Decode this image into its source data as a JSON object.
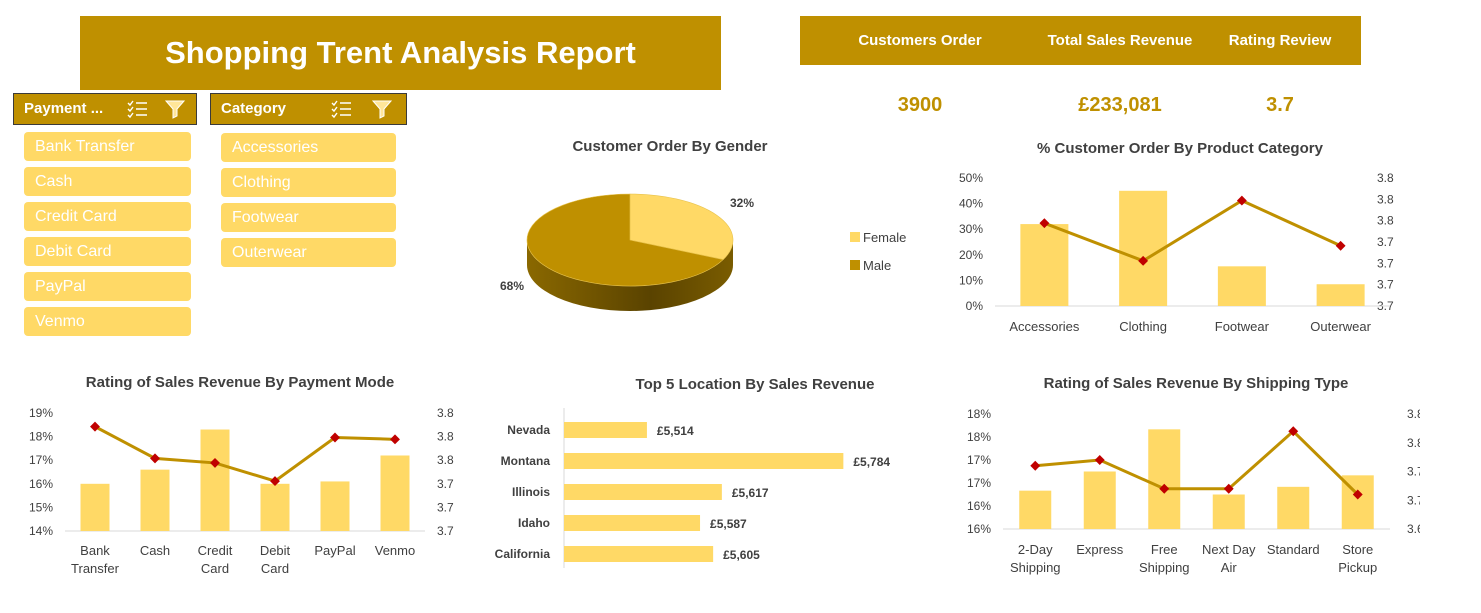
{
  "title": "Shopping Trent  Analysis Report",
  "kpis": {
    "customers_order": {
      "label": "Customers Order",
      "value": "3900"
    },
    "total_sales_revenue": {
      "label": "Total Sales Revenue",
      "value": "£233,081"
    },
    "rating_review": {
      "label": "Rating Review",
      "value": "3.7"
    }
  },
  "colors": {
    "gold": "#BF9000",
    "light_gold": "#FFD966",
    "marker": "#C00000"
  },
  "slicers": {
    "payment": {
      "title": "Payment ...",
      "items": [
        "Bank Transfer",
        "Cash",
        "Credit Card",
        "Debit Card",
        "PayPal",
        "Venmo"
      ]
    },
    "category": {
      "title": "Category",
      "items": [
        "Accessories",
        "Clothing",
        "Footwear",
        "Outerwear"
      ]
    }
  },
  "chart_data": [
    {
      "id": "gender",
      "type": "pie",
      "title": "Customer Order By Gender",
      "categories": [
        "Female",
        "Male"
      ],
      "values": [
        32,
        68
      ],
      "data_labels": [
        "32%",
        "68%"
      ],
      "legend": "right"
    },
    {
      "id": "category",
      "type": "bar",
      "title": "% Customer Order By Product Category",
      "categories": [
        "Accessories",
        "Clothing",
        "Footwear",
        "Outerwear"
      ],
      "series": [
        {
          "type": "bar",
          "values": [
            32,
            45,
            15.5,
            8.5
          ],
          "axis": "left"
        },
        {
          "type": "line",
          "values": [
            3.77,
            3.72,
            3.8,
            3.74
          ],
          "axis": "right"
        }
      ],
      "ylim": [
        0,
        50
      ],
      "yticks": [
        "0%",
        "10%",
        "20%",
        "30%",
        "40%",
        "50%"
      ],
      "y2lim": [
        3.66,
        3.83
      ],
      "y2ticks": [
        "3.7",
        "3.7",
        "3.7",
        "3.7",
        "3.8",
        "3.8",
        "3.8"
      ]
    },
    {
      "id": "payment",
      "type": "bar",
      "title": "Rating of Sales Revenue By Payment Mode",
      "categories": [
        "Bank Transfer",
        "Cash",
        "Credit Card",
        "Debit Card",
        "PayPal",
        "Venmo"
      ],
      "series": [
        {
          "type": "bar",
          "values": [
            16.0,
            16.6,
            18.3,
            16.0,
            16.1,
            17.2
          ],
          "axis": "left"
        },
        {
          "type": "line",
          "values": [
            3.795,
            3.76,
            3.755,
            3.735,
            3.783,
            3.781
          ],
          "axis": "right"
        }
      ],
      "ylim": [
        14,
        19
      ],
      "yticks": [
        "14%",
        "15%",
        "16%",
        "17%",
        "18%",
        "19%"
      ],
      "y2lim": [
        3.68,
        3.81
      ],
      "y2ticks": [
        "3.7",
        "3.7",
        "3.7",
        "3.8",
        "3.8",
        "3.8"
      ]
    },
    {
      "id": "location",
      "type": "bar",
      "title": "Top 5 Location By Sales Revenue",
      "categories": [
        "Nevada",
        "Montana",
        "Illinois",
        "Idaho",
        "California"
      ],
      "values": [
        5514,
        5784,
        5617,
        5587,
        5605
      ],
      "data_labels": [
        "£5,514",
        "£5,784",
        "£5,617",
        "£5,587",
        "£5,605"
      ],
      "orientation": "horizontal",
      "xlim": [
        5400,
        5800
      ]
    },
    {
      "id": "shipping",
      "type": "bar",
      "title": "Rating of Sales Revenue By Shipping Type",
      "categories": [
        "2-Day Shipping",
        "Express",
        "Free Shipping",
        "Next Day Air",
        "Standard",
        "Store Pickup"
      ],
      "series": [
        {
          "type": "bar",
          "values": [
            16.5,
            17.0,
            18.1,
            16.4,
            16.6,
            16.9
          ],
          "axis": "left"
        },
        {
          "type": "line",
          "values": [
            3.76,
            3.77,
            3.72,
            3.72,
            3.82,
            3.71
          ],
          "axis": "right"
        }
      ],
      "ylim": [
        15.5,
        18.5
      ],
      "yticks": [
        "16%",
        "16%",
        "17%",
        "17%",
        "18%",
        "18%"
      ],
      "y2lim": [
        3.65,
        3.85
      ],
      "y2ticks": [
        "3.65",
        "3.70",
        "3.75",
        "3.80",
        "3.85"
      ]
    }
  ]
}
